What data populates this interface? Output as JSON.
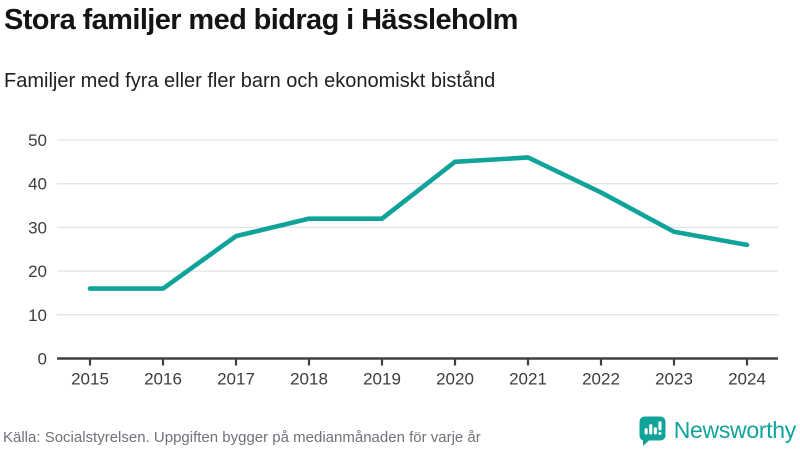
{
  "header": {
    "title": "Stora familjer med bidrag i Hässleholm",
    "subtitle": "Familjer med fyra eller fler barn och ekonomiskt bistånd"
  },
  "footer": {
    "source": "Källa: Socialstyrelsen. Uppgiften bygger på medianmånaden för varje år"
  },
  "brand": {
    "name": "Newsworthy",
    "icon": "newsworthy-speech-bubble-chart-icon",
    "color": "#10a39a"
  },
  "chart_data": {
    "type": "line",
    "title": "Stora familjer med bidrag i Hässleholm",
    "subtitle": "Familjer med fyra eller fler barn och ekonomiskt bistånd",
    "categories": [
      "2015",
      "2016",
      "2017",
      "2018",
      "2019",
      "2020",
      "2021",
      "2022",
      "2023",
      "2024"
    ],
    "values": [
      16,
      16,
      28,
      32,
      32,
      45,
      46,
      38,
      29,
      26
    ],
    "series_name": "Familjer med fyra eller fler barn och ekonomiskt bistånd",
    "xlabel": "",
    "ylabel": "",
    "ylim": [
      0,
      50
    ],
    "yticks": [
      0,
      10,
      20,
      30,
      40,
      50
    ],
    "grid": true,
    "legend": "none",
    "line_color": "#10a39a",
    "grid_color": "#e3e3e3",
    "axis_color": "#404040",
    "tick_label_color": "#3d3d3d"
  }
}
